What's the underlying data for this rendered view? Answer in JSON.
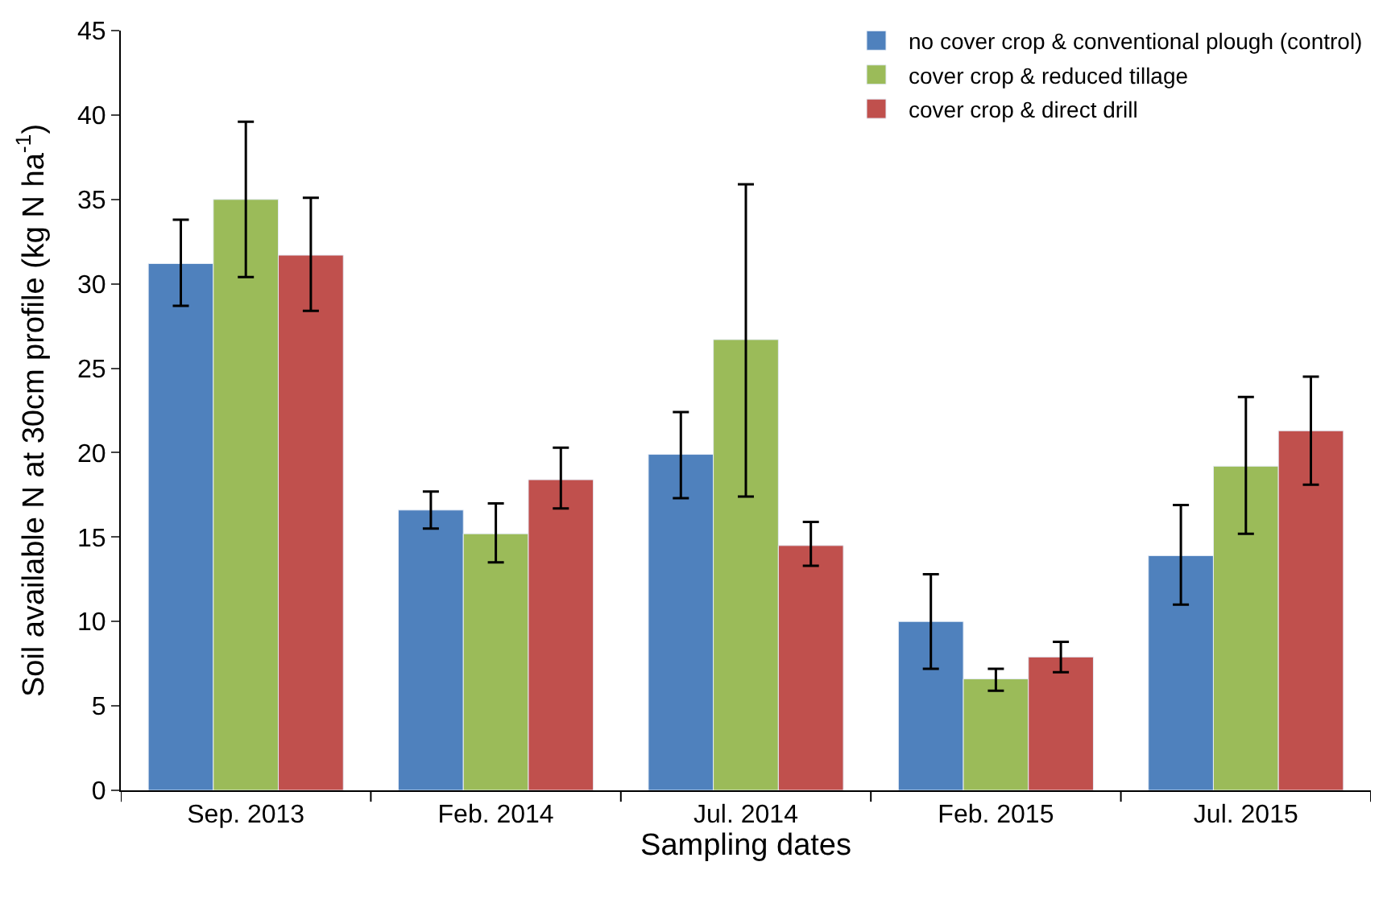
{
  "chart_data": {
    "type": "bar",
    "xlabel": "Sampling dates",
    "ylabel": "Soil available N at 30cm profile (kg N ha$^{-1}$)",
    "categories": [
      "Sep. 2013",
      "Feb. 2014",
      "Jul. 2014",
      "Feb. 2015",
      "Jul. 2015"
    ],
    "ylim": [
      0,
      45
    ],
    "yticks": [
      0,
      5,
      10,
      15,
      20,
      25,
      30,
      35,
      40,
      45
    ],
    "legend": "top right",
    "series": [
      {
        "name": "no cover crop & conventional plough (control)",
        "color": "#4f81bd",
        "values": [
          31.2,
          16.6,
          19.9,
          10.0,
          13.9
        ],
        "errors": [
          [
            28.7,
            33.8
          ],
          [
            15.5,
            17.7
          ],
          [
            17.3,
            22.4
          ],
          [
            7.2,
            12.8
          ],
          [
            11.0,
            16.9
          ]
        ]
      },
      {
        "name": "cover crop & reduced tillage",
        "color": "#9bbb59",
        "values": [
          35.0,
          15.2,
          26.7,
          6.6,
          19.2
        ],
        "errors": [
          [
            30.4,
            39.6
          ],
          [
            13.5,
            17.0
          ],
          [
            17.4,
            35.9
          ],
          [
            5.9,
            7.2
          ],
          [
            15.2,
            23.3
          ]
        ]
      },
      {
        "name": "cover crop & direct drill",
        "color": "#c0504d",
        "values": [
          31.7,
          18.4,
          14.5,
          7.9,
          21.3
        ],
        "errors": [
          [
            28.4,
            35.1
          ],
          [
            16.7,
            20.3
          ],
          [
            13.3,
            15.9
          ],
          [
            7.0,
            8.8
          ],
          [
            18.1,
            24.5
          ]
        ]
      }
    ]
  }
}
